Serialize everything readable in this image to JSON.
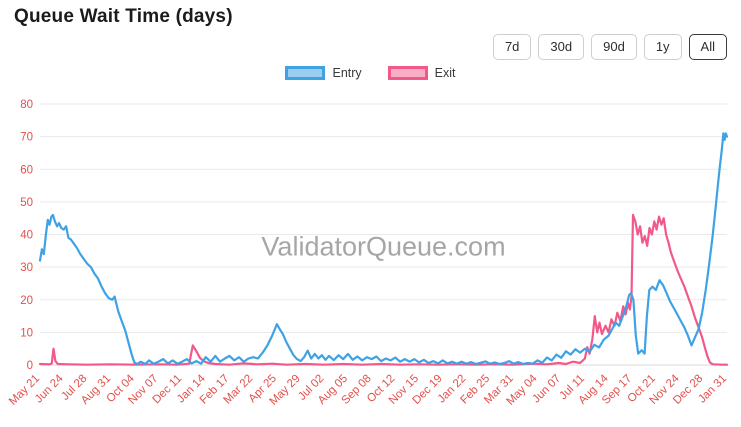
{
  "header": {
    "title": "Queue Wait Time (days)"
  },
  "controls": {
    "ranges": [
      {
        "label": "7d",
        "selected": false
      },
      {
        "label": "30d",
        "selected": false
      },
      {
        "label": "90d",
        "selected": false
      },
      {
        "label": "1y",
        "selected": false
      },
      {
        "label": "All",
        "selected": true
      }
    ]
  },
  "legend": [
    {
      "label": "Entry",
      "color": "#3ea2e5",
      "fill": "#9bcdf0"
    },
    {
      "label": "Exit",
      "color": "#f2598a",
      "fill": "#f8aec3"
    }
  ],
  "watermark": "ValidatorQueue.com",
  "colors": {
    "axis_labels": "#e2504c",
    "grid": "#e9e9e9",
    "axis_line": "#d8d8d8",
    "watermark": "#a6a6a6"
  },
  "chart_data": {
    "type": "line",
    "title": "Queue Wait Time (days)",
    "xlabel": "",
    "ylabel": "",
    "ylim": [
      0,
      80
    ],
    "y_ticks": [
      0,
      10,
      20,
      30,
      40,
      50,
      60,
      70,
      80
    ],
    "x_range": [
      0,
      29
    ],
    "grid": "horizontal",
    "legend_position": "top",
    "x_tick_labels": [
      "May 21",
      "Jun 24",
      "Jul 28",
      "Aug 31",
      "Oct 04",
      "Nov 07",
      "Dec 11",
      "Jan 14",
      "Feb 17",
      "Mar 22",
      "Apr 25",
      "May 29",
      "Jul 02",
      "Aug 05",
      "Sep 08",
      "Oct 12",
      "Nov 15",
      "Dec 19",
      "Jan 22",
      "Feb 25",
      "Mar 31",
      "May 04",
      "Jun 07",
      "Jul 11",
      "Aug 14",
      "Sep 17",
      "Oct 21",
      "Nov 24",
      "Dec 28",
      "Jan 31"
    ],
    "series": [
      {
        "name": "Entry",
        "color": "#3ea2e5",
        "points": [
          [
            0,
            32
          ],
          [
            0.08,
            35.5
          ],
          [
            0.16,
            34
          ],
          [
            0.25,
            40
          ],
          [
            0.33,
            44.5
          ],
          [
            0.4,
            43
          ],
          [
            0.48,
            45.5
          ],
          [
            0.55,
            46
          ],
          [
            0.63,
            44
          ],
          [
            0.72,
            42.5
          ],
          [
            0.8,
            43.5
          ],
          [
            0.9,
            42
          ],
          [
            1,
            41.5
          ],
          [
            1.1,
            42.5
          ],
          [
            1.2,
            39
          ],
          [
            1.3,
            38.5
          ],
          [
            1.4,
            37.5
          ],
          [
            1.55,
            36
          ],
          [
            1.7,
            34
          ],
          [
            1.85,
            32.5
          ],
          [
            2,
            31
          ],
          [
            2.15,
            30
          ],
          [
            2.3,
            28
          ],
          [
            2.45,
            26.5
          ],
          [
            2.6,
            24
          ],
          [
            2.75,
            22
          ],
          [
            2.9,
            20.5
          ],
          [
            3.05,
            20
          ],
          [
            3.15,
            21
          ],
          [
            3.3,
            16.5
          ],
          [
            3.45,
            13.5
          ],
          [
            3.6,
            10.5
          ],
          [
            3.75,
            6.5
          ],
          [
            3.88,
            3
          ],
          [
            3.98,
            0.8
          ],
          [
            4.1,
            0.3
          ],
          [
            4.25,
            1
          ],
          [
            4.45,
            0.3
          ],
          [
            4.6,
            1.4
          ],
          [
            4.8,
            0.4
          ],
          [
            5,
            1
          ],
          [
            5.2,
            1.8
          ],
          [
            5.4,
            0.5
          ],
          [
            5.6,
            1.4
          ],
          [
            5.8,
            0.4
          ],
          [
            6,
            1
          ],
          [
            6.2,
            1.8
          ],
          [
            6.4,
            0.5
          ],
          [
            6.6,
            1.2
          ],
          [
            6.8,
            0.4
          ],
          [
            7,
            2.4
          ],
          [
            7.2,
            1
          ],
          [
            7.4,
            2.8
          ],
          [
            7.6,
            1
          ],
          [
            7.8,
            2
          ],
          [
            8,
            2.8
          ],
          [
            8.2,
            1.4
          ],
          [
            8.4,
            2.4
          ],
          [
            8.6,
            1
          ],
          [
            8.8,
            2
          ],
          [
            9,
            2.4
          ],
          [
            9.2,
            2
          ],
          [
            9.4,
            3.8
          ],
          [
            9.6,
            6
          ],
          [
            9.8,
            9
          ],
          [
            10,
            12.5
          ],
          [
            10.12,
            11
          ],
          [
            10.25,
            9.5
          ],
          [
            10.4,
            7
          ],
          [
            10.55,
            5
          ],
          [
            10.7,
            3
          ],
          [
            10.85,
            1.8
          ],
          [
            11,
            1.2
          ],
          [
            11.15,
            2.4
          ],
          [
            11.3,
            4.4
          ],
          [
            11.45,
            2
          ],
          [
            11.6,
            3.4
          ],
          [
            11.75,
            2
          ],
          [
            11.9,
            3
          ],
          [
            12.05,
            1.6
          ],
          [
            12.2,
            2.8
          ],
          [
            12.4,
            1.5
          ],
          [
            12.6,
            3
          ],
          [
            12.8,
            1.8
          ],
          [
            13,
            3.4
          ],
          [
            13.2,
            1.6
          ],
          [
            13.4,
            2.6
          ],
          [
            13.6,
            1.4
          ],
          [
            13.8,
            2.4
          ],
          [
            14,
            1.8
          ],
          [
            14.2,
            2.6
          ],
          [
            14.4,
            1.2
          ],
          [
            14.6,
            2
          ],
          [
            14.8,
            1.4
          ],
          [
            15,
            2.3
          ],
          [
            15.2,
            1
          ],
          [
            15.4,
            1.8
          ],
          [
            15.6,
            1
          ],
          [
            15.8,
            1.8
          ],
          [
            16,
            0.8
          ],
          [
            16.2,
            1.6
          ],
          [
            16.4,
            0.6
          ],
          [
            16.6,
            1.2
          ],
          [
            16.8,
            0.5
          ],
          [
            17,
            1.4
          ],
          [
            17.2,
            0.5
          ],
          [
            17.4,
            1
          ],
          [
            17.6,
            0.4
          ],
          [
            17.8,
            1
          ],
          [
            18,
            0.4
          ],
          [
            18.2,
            0.9
          ],
          [
            18.4,
            0.3
          ],
          [
            18.6,
            0.7
          ],
          [
            18.8,
            1.1
          ],
          [
            19,
            0.4
          ],
          [
            19.2,
            0.8
          ],
          [
            19.4,
            0.3
          ],
          [
            19.6,
            0.6
          ],
          [
            19.8,
            1.2
          ],
          [
            20,
            0.4
          ],
          [
            20.2,
            0.9
          ],
          [
            20.4,
            0.3
          ],
          [
            20.6,
            0.6
          ],
          [
            20.8,
            0.4
          ],
          [
            21,
            1.4
          ],
          [
            21.2,
            0.7
          ],
          [
            21.4,
            2.3
          ],
          [
            21.6,
            1.4
          ],
          [
            21.8,
            3.2
          ],
          [
            22,
            2.2
          ],
          [
            22.2,
            4.2
          ],
          [
            22.4,
            3.2
          ],
          [
            22.6,
            4.8
          ],
          [
            22.8,
            3.8
          ],
          [
            23,
            5
          ],
          [
            23.2,
            4
          ],
          [
            23.4,
            6.2
          ],
          [
            23.6,
            5.4
          ],
          [
            23.8,
            7.8
          ],
          [
            24,
            9
          ],
          [
            24.15,
            11
          ],
          [
            24.3,
            13
          ],
          [
            24.45,
            12
          ],
          [
            24.6,
            15
          ],
          [
            24.75,
            18
          ],
          [
            24.87,
            21.5
          ],
          [
            24.95,
            22
          ],
          [
            25.05,
            20
          ],
          [
            25.15,
            9
          ],
          [
            25.25,
            3.5
          ],
          [
            25.4,
            4.5
          ],
          [
            25.52,
            3.5
          ],
          [
            25.62,
            15
          ],
          [
            25.72,
            23
          ],
          [
            25.85,
            24
          ],
          [
            26,
            23
          ],
          [
            26.15,
            26
          ],
          [
            26.3,
            24.5
          ],
          [
            26.45,
            22
          ],
          [
            26.6,
            19.5
          ],
          [
            26.75,
            17.5
          ],
          [
            26.9,
            15.5
          ],
          [
            27.05,
            13.5
          ],
          [
            27.2,
            11.5
          ],
          [
            27.35,
            9
          ],
          [
            27.5,
            6
          ],
          [
            27.65,
            8.5
          ],
          [
            27.8,
            11
          ],
          [
            27.95,
            16
          ],
          [
            28.1,
            23
          ],
          [
            28.25,
            31
          ],
          [
            28.4,
            40
          ],
          [
            28.5,
            47
          ],
          [
            28.6,
            54
          ],
          [
            28.7,
            61
          ],
          [
            28.78,
            66
          ],
          [
            28.85,
            71
          ],
          [
            28.9,
            69
          ],
          [
            28.95,
            71
          ],
          [
            29,
            70
          ]
        ]
      },
      {
        "name": "Exit",
        "color": "#f2598a",
        "points": [
          [
            0,
            0.3
          ],
          [
            0.4,
            0.2
          ],
          [
            0.5,
            0.5
          ],
          [
            0.57,
            5
          ],
          [
            0.65,
            1.2
          ],
          [
            0.75,
            0.3
          ],
          [
            1.2,
            0.2
          ],
          [
            2,
            0.1
          ],
          [
            3,
            0.2
          ],
          [
            4,
            0.1
          ],
          [
            5,
            0.2
          ],
          [
            5.8,
            0.1
          ],
          [
            6.3,
            0.4
          ],
          [
            6.45,
            6
          ],
          [
            6.6,
            4.2
          ],
          [
            6.75,
            2.2
          ],
          [
            6.9,
            1.2
          ],
          [
            7.1,
            0.6
          ],
          [
            7.4,
            0.3
          ],
          [
            8,
            0.1
          ],
          [
            8.6,
            0.5
          ],
          [
            9.2,
            0.2
          ],
          [
            9.8,
            0.4
          ],
          [
            10.4,
            0.1
          ],
          [
            11.2,
            0.3
          ],
          [
            12,
            0.1
          ],
          [
            12.8,
            0.3
          ],
          [
            13.6,
            0.1
          ],
          [
            14.4,
            0.3
          ],
          [
            15.2,
            0.1
          ],
          [
            16,
            0.2
          ],
          [
            16.8,
            0.1
          ],
          [
            17.6,
            0.2
          ],
          [
            18.4,
            0.1
          ],
          [
            19.2,
            0.2
          ],
          [
            20,
            0.1
          ],
          [
            20.8,
            0.4
          ],
          [
            21.4,
            0.2
          ],
          [
            21.9,
            0.6
          ],
          [
            22.2,
            0.3
          ],
          [
            22.5,
            1
          ],
          [
            22.8,
            0.6
          ],
          [
            23,
            2
          ],
          [
            23.1,
            5.5
          ],
          [
            23.2,
            3.5
          ],
          [
            23.32,
            8
          ],
          [
            23.42,
            15
          ],
          [
            23.52,
            10
          ],
          [
            23.62,
            13
          ],
          [
            23.72,
            9.5
          ],
          [
            23.87,
            12
          ],
          [
            24,
            10
          ],
          [
            24.12,
            14
          ],
          [
            24.25,
            12
          ],
          [
            24.37,
            16
          ],
          [
            24.5,
            13.5
          ],
          [
            24.62,
            18
          ],
          [
            24.72,
            15.5
          ],
          [
            24.82,
            19
          ],
          [
            24.9,
            17
          ],
          [
            24.97,
            21
          ],
          [
            25.03,
            46
          ],
          [
            25.13,
            44
          ],
          [
            25.23,
            40
          ],
          [
            25.33,
            42.5
          ],
          [
            25.43,
            37.5
          ],
          [
            25.53,
            39.5
          ],
          [
            25.63,
            36.5
          ],
          [
            25.73,
            42
          ],
          [
            25.83,
            40
          ],
          [
            25.93,
            44
          ],
          [
            26.03,
            41.5
          ],
          [
            26.13,
            45.5
          ],
          [
            26.23,
            43
          ],
          [
            26.33,
            45
          ],
          [
            26.43,
            40
          ],
          [
            26.53,
            37.5
          ],
          [
            26.63,
            34.5
          ],
          [
            26.73,
            32.5
          ],
          [
            26.83,
            30.5
          ],
          [
            26.93,
            28.5
          ],
          [
            27.05,
            26.5
          ],
          [
            27.2,
            24
          ],
          [
            27.35,
            21
          ],
          [
            27.5,
            18
          ],
          [
            27.65,
            14.5
          ],
          [
            27.8,
            11.5
          ],
          [
            27.95,
            8.5
          ],
          [
            28.08,
            5
          ],
          [
            28.18,
            2.5
          ],
          [
            28.28,
            0.8
          ],
          [
            28.4,
            0.2
          ],
          [
            28.8,
            0.1
          ],
          [
            29,
            0.1
          ]
        ]
      }
    ]
  }
}
